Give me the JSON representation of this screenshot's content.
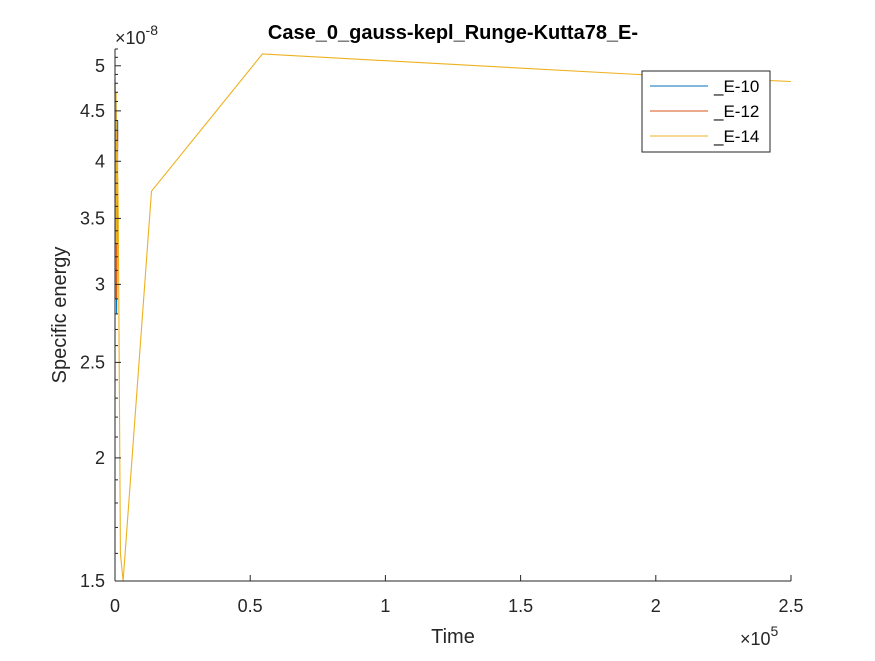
{
  "chart_data": {
    "type": "line",
    "title": "Case_0_gauss-kepl_Runge-Kutta78_E-",
    "xlabel": "Time",
    "ylabel": "Specific energy",
    "x_exponent_label": "×10",
    "x_exponent": "5",
    "y_exponent_label": "×10",
    "y_exponent": "-8",
    "xlim": [
      0,
      2.5
    ],
    "ylim": [
      1.5,
      5.2
    ],
    "yscale": "log",
    "xticks": [
      0,
      0.5,
      1,
      1.5,
      2,
      2.5
    ],
    "xtick_labels": [
      "0",
      "0.5",
      "1",
      "1.5",
      "2",
      "2.5"
    ],
    "yticks": [
      1.5,
      2,
      2.5,
      3,
      3.5,
      4,
      4.5,
      5
    ],
    "ytick_labels": [
      "1.5",
      "2",
      "2.5",
      "3",
      "3.5",
      "4",
      "4.5",
      "5"
    ],
    "grid": false,
    "legend_position": "top-right",
    "series": [
      {
        "name": "_E-10",
        "color": "#0072BD",
        "x": [
          0,
          0.002,
          0.004,
          0.006,
          0.01
        ],
        "y": [
          4.85,
          3.0,
          4.6,
          2.8,
          4.4
        ]
      },
      {
        "name": "_E-12",
        "color": "#D95319",
        "x": [
          0,
          0.002,
          0.004,
          0.006,
          0.01
        ],
        "y": [
          4.8,
          3.1,
          4.5,
          2.9,
          4.3
        ]
      },
      {
        "name": "_E-14",
        "color": "#EDB120",
        "x": [
          0,
          0.002,
          0.004,
          0.006,
          0.008,
          0.012,
          0.02,
          0.03,
          0.135,
          0.545,
          2.05,
          2.5
        ],
        "y": [
          4.8,
          2.9,
          4.7,
          3.3,
          4.2,
          3.6,
          1.6,
          1.5,
          3.73,
          5.14,
          4.88,
          4.82
        ]
      }
    ]
  }
}
